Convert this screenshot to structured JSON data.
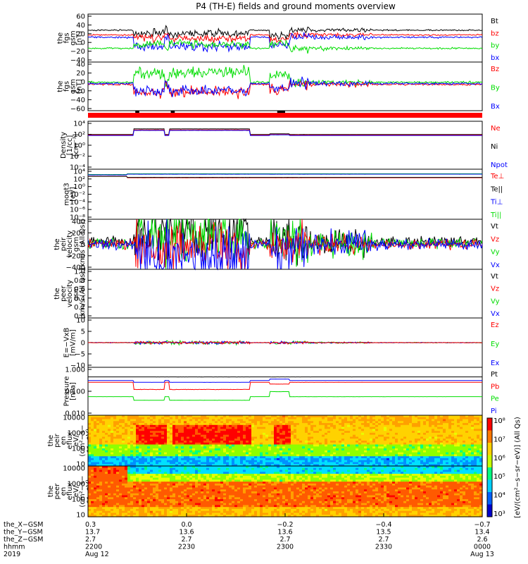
{
  "title": "P4 (TH-E) fields and ground moments overview",
  "colors": {
    "black": "#000000",
    "red": "#ff0000",
    "green": "#00dd00",
    "blue": "#0000ff"
  },
  "chart_data": [
    {
      "type": "line",
      "ylabel": [
        "the",
        "fgs",
        "gsm",
        "[nT]"
      ],
      "yticks": [
        "60",
        "40",
        "20",
        "0",
        "−20",
        "−40"
      ],
      "legend": [
        {
          "name": "Bt",
          "color": "#000000"
        },
        {
          "name": "bz",
          "color": "#ff0000"
        },
        {
          "name": "by",
          "color": "#00dd00"
        },
        {
          "name": "bx",
          "color": "#0000ff"
        }
      ]
    },
    {
      "type": "line",
      "ylabel": [
        "the",
        "fgs",
        "gsm",
        "[nT]"
      ],
      "yticks": [
        "40",
        "20",
        "0",
        "−20",
        "−40",
        "−60"
      ],
      "legend": [
        {
          "name": "Bz",
          "color": "#ff0000"
        },
        {
          "name": "By",
          "color": "#00dd00"
        },
        {
          "name": "Bx",
          "color": "#0000ff"
        }
      ]
    },
    {
      "type": "line",
      "ylabel": [
        "Density",
        "[1/cc]",
        "[cm⁻³]"
      ],
      "yticks": [
        "10⁴",
        "10²",
        "10⁰",
        "10⁻²",
        "10⁻⁴"
      ],
      "legend": [
        {
          "name": "Ne",
          "color": "#ff0000"
        },
        {
          "name": "Ni",
          "color": "#000000"
        },
        {
          "name": "Npot",
          "color": "#0000ff"
        }
      ]
    },
    {
      "type": "line",
      "ylabel": [
        "moqt3",
        "[eV]"
      ],
      "yticks": [
        "10⁴",
        "10²",
        "10⁰",
        "10⁻²",
        "10⁻⁴",
        "10⁻⁶",
        "10⁻⁸"
      ],
      "legend": [
        {
          "name": "Te⊥",
          "color": "#ff0000"
        },
        {
          "name": "Te||",
          "color": "#000000"
        },
        {
          "name": "Ti⊥",
          "color": "#0000ff"
        },
        {
          "name": "Ti||",
          "color": "#00dd00"
        }
      ]
    },
    {
      "type": "line",
      "ylabel": [
        "the",
        "peir",
        "velocity",
        "gsm",
        "[km/s (All Qs)]"
      ],
      "yticks": [
        "400",
        "200",
        "0",
        "−200",
        "−400"
      ],
      "legend": [
        {
          "name": "Vt",
          "color": "#000000"
        },
        {
          "name": "Vz",
          "color": "#ff0000"
        },
        {
          "name": "Vy",
          "color": "#00dd00"
        },
        {
          "name": "Vx",
          "color": "#0000ff"
        }
      ]
    },
    {
      "type": "line",
      "ylabel": [
        "the",
        "peer",
        "velocity",
        "gsm",
        "[km/s (All Qs)]"
      ],
      "yticks": [
        "1.0",
        "0.8",
        "0.6",
        "0.4",
        "0.2",
        "0.0"
      ],
      "legend": [
        {
          "name": "Vt",
          "color": "#000000"
        },
        {
          "name": "Vz",
          "color": "#ff0000"
        },
        {
          "name": "Vy",
          "color": "#00dd00"
        },
        {
          "name": "Vx",
          "color": "#0000ff"
        }
      ]
    },
    {
      "type": "line",
      "ylabel": [
        "E=−VxB",
        "[mV/m]"
      ],
      "yticks": [
        "10",
        "5",
        "0",
        "−5",
        "−10"
      ],
      "legend": [
        {
          "name": "Ez",
          "color": "#ff0000"
        },
        {
          "name": "Ey",
          "color": "#00dd00"
        },
        {
          "name": "Ex",
          "color": "#0000ff"
        }
      ]
    },
    {
      "type": "line",
      "ylabel": [
        "Pressure",
        "[nPa]"
      ],
      "yticks": [
        "1.000",
        "0.100",
        "0.010"
      ],
      "legend": [
        {
          "name": "Pt",
          "color": "#000000"
        },
        {
          "name": "Pb",
          "color": "#ff0000"
        },
        {
          "name": "Pe",
          "color": "#00dd00"
        },
        {
          "name": "Pi",
          "color": "#0000ff"
        }
      ]
    },
    {
      "type": "heatmap",
      "ylabel": [
        "the",
        "peir",
        "en",
        "eflux",
        "eV/",
        "(cm²−s−",
        "sr−eV)"
      ],
      "yticks": [
        "10000",
        "1000",
        "100",
        "10"
      ]
    },
    {
      "type": "heatmap",
      "ylabel": [
        "the",
        "peer",
        "en",
        "eflux",
        "eV/",
        "(cm²−s−",
        "sr−eV)"
      ],
      "yticks": [
        "10000",
        "1000",
        "100",
        "10"
      ],
      "colorbar": {
        "label": "[eV/(cm²−s−sr−eV)] (All Qs)",
        "ticks": [
          "10⁸",
          "10⁷",
          "10⁶",
          "10⁵",
          "10⁴",
          "10³"
        ]
      }
    }
  ],
  "xaxis": {
    "row_labels": [
      "the_X−GSM",
      "the_Y−GSM",
      "the_Z−GSM",
      "hhmm",
      "2019"
    ],
    "columns": [
      {
        "vals": [
          "0.3",
          "13.7",
          "2.7",
          "2200",
          "Aug 12"
        ]
      },
      {
        "vals": [
          "0.0",
          "13.6",
          "2.7",
          "2230",
          ""
        ]
      },
      {
        "vals": [
          "−0.2",
          "13.6",
          "2.7",
          "2300",
          ""
        ]
      },
      {
        "vals": [
          "−0.4",
          "13.5",
          "2.7",
          "2330",
          ""
        ]
      },
      {
        "vals": [
          "−0.7",
          "13.4",
          "2.6",
          "0000",
          "Aug 13"
        ]
      }
    ]
  }
}
